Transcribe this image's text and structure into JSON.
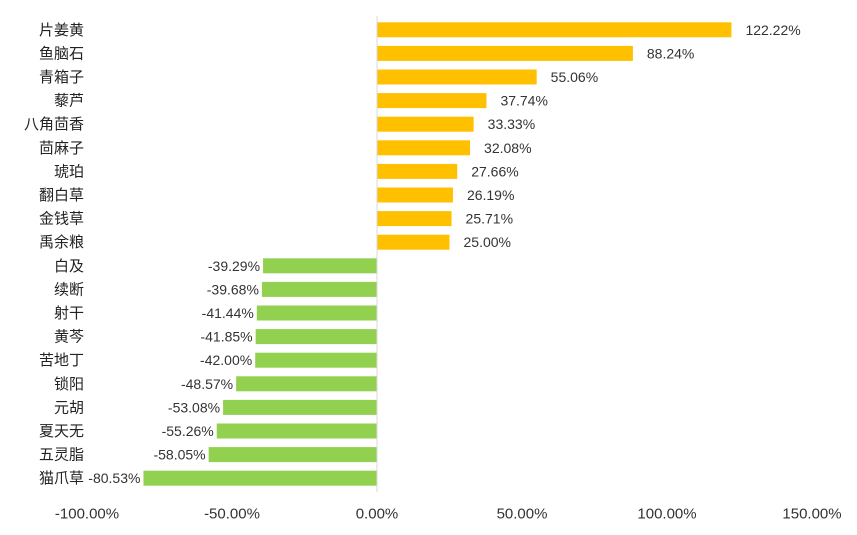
{
  "chart_data": {
    "type": "bar",
    "orientation": "horizontal",
    "categories": [
      "片姜黄",
      "鱼脑石",
      "青箱子",
      "藜芦",
      "八角茴香",
      "茴麻子",
      "琥珀",
      "翻白草",
      "金钱草",
      "禹余粮",
      "白及",
      "续断",
      "射干",
      "黄芩",
      "苦地丁",
      "锁阳",
      "元胡",
      "夏天无",
      "五灵脂",
      "猫爪草"
    ],
    "values": [
      122.22,
      88.24,
      55.06,
      37.74,
      33.33,
      32.08,
      27.66,
      26.19,
      25.71,
      25.0,
      -39.29,
      -39.68,
      -41.44,
      -41.85,
      -42.0,
      -48.57,
      -53.08,
      -55.26,
      -58.05,
      -80.53
    ],
    "value_labels": [
      "122.22%",
      "88.24%",
      "55.06%",
      "37.74%",
      "33.33%",
      "32.08%",
      "27.66%",
      "26.19%",
      "25.71%",
      "25.00%",
      "-39.29%",
      "-39.68%",
      "-41.44%",
      "-41.85%",
      "-42.00%",
      "-48.57%",
      "-53.08%",
      "-55.26%",
      "-58.05%",
      "-80.53%"
    ],
    "xlim": [
      -100,
      150
    ],
    "x_ticks": [
      -100,
      -50,
      0,
      50,
      100,
      150
    ],
    "x_tick_labels": [
      "-100.00%",
      "-50.00%",
      "0.00%",
      "50.00%",
      "100.00%",
      "150.00%"
    ],
    "title": "",
    "xlabel": "",
    "ylabel": "",
    "grid": false,
    "legend": "none",
    "colors": {
      "positive": "#FFC000",
      "negative": "#92D050",
      "axis": "#D9D9D9"
    }
  }
}
